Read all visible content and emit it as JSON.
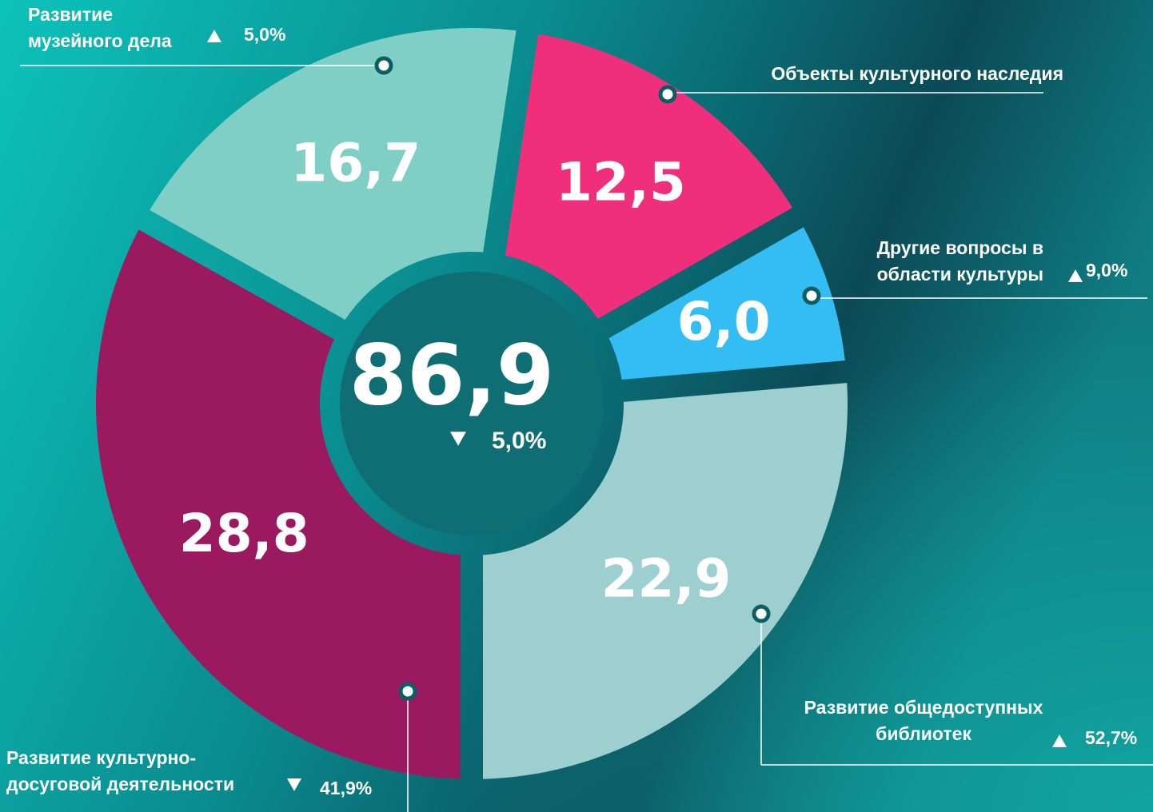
{
  "chart_data": {
    "type": "pie",
    "donut": true,
    "categories": [
      [
        "Развитие культурно-",
        "досуговой деятельности"
      ],
      [
        "Развитие",
        "музейного дела"
      ],
      [
        "Объекты культурного наследия"
      ],
      [
        "Другие вопросы в",
        "области культуры"
      ],
      [
        "Развитие общедоступных",
        "библиотек"
      ]
    ],
    "values": [
      28.8,
      16.7,
      12.5,
      6.0,
      22.9
    ],
    "value_labels": [
      "28,8",
      "16,7",
      "12,5",
      "6,0",
      "22,9"
    ],
    "colors": [
      "#9b1a5f",
      "#80cfc6",
      "#ef2f7b",
      "#33bdf2",
      "#9ecfd0"
    ],
    "changes": [
      {
        "direction": "down",
        "label": "41,9%"
      },
      {
        "direction": "up",
        "label": "5,0%"
      },
      null,
      {
        "direction": "up",
        "label": "9,0%"
      },
      {
        "direction": "up",
        "label": "52,7%"
      }
    ],
    "center_label": "86,9",
    "center_change": {
      "direction": "down",
      "label": "5,0%"
    }
  }
}
